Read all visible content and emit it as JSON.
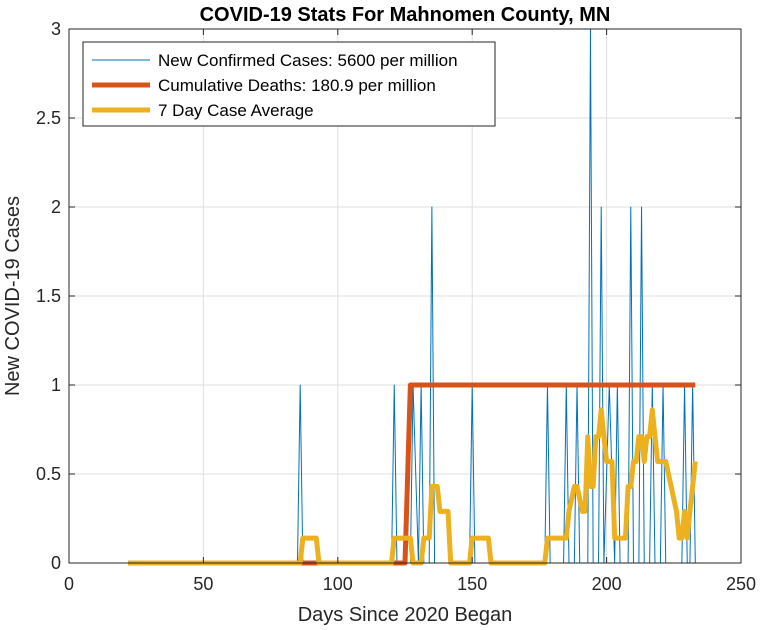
{
  "chart_data": {
    "type": "line",
    "title": "COVID-19 Stats For Mahnomen County, MN",
    "xlabel": "Days Since 2020 Began",
    "ylabel": "New COVID-19 Cases",
    "xlim": [
      0,
      250
    ],
    "ylim": [
      0,
      3
    ],
    "xticks": [
      0,
      50,
      100,
      150,
      200,
      250
    ],
    "yticks": [
      0,
      0.5,
      1,
      1.5,
      2,
      2.5,
      3
    ],
    "xtick_labels": [
      "0",
      "50",
      "100",
      "150",
      "200",
      "250"
    ],
    "ytick_labels": [
      "0",
      "0.5",
      "1",
      "1.5",
      "2",
      "2.5",
      "3"
    ],
    "grid": true,
    "legend_position": "top-left",
    "series": [
      {
        "name": "New Confirmed Cases: 5600 per million",
        "color": "#0072BD",
        "x": [
          22,
          85,
          86,
          87,
          120,
          121,
          122,
          127,
          128,
          130,
          131,
          132,
          134,
          135,
          136,
          149,
          150,
          151,
          177,
          178,
          179,
          184,
          185,
          186,
          188,
          189,
          190,
          193,
          194,
          195,
          197,
          198,
          199,
          201,
          203,
          204,
          205,
          208,
          209,
          210,
          212,
          213,
          214,
          216,
          217,
          218,
          220,
          221,
          222,
          228,
          229,
          230,
          231,
          232,
          233
        ],
        "y": [
          0,
          0,
          1,
          0,
          0,
          1,
          0,
          0,
          1,
          0,
          1,
          0,
          0,
          2,
          0,
          0,
          1,
          0,
          0,
          1,
          0,
          0,
          1,
          0,
          0,
          1,
          0,
          0,
          3,
          0,
          0,
          2,
          0,
          1,
          0,
          1,
          0,
          0,
          2,
          0,
          0,
          2,
          0,
          0,
          1,
          0,
          0,
          1,
          0,
          0,
          1,
          0,
          0,
          1,
          0
        ]
      },
      {
        "name": "Cumulative Deaths: 180.9 per million",
        "color": "#D95319",
        "x": [
          22,
          125,
          127,
          233
        ],
        "y": [
          0,
          0,
          1,
          1
        ]
      },
      {
        "name": "7 Day Case Average",
        "color": "#EDB120",
        "x": [
          22,
          86,
          87,
          92,
          93,
          120,
          121,
          127,
          128,
          131,
          132,
          134,
          135,
          137,
          138,
          141,
          142,
          149,
          150,
          156,
          157,
          177,
          178,
          185,
          186,
          188,
          189,
          191,
          192,
          193,
          194,
          195,
          196,
          197,
          198,
          199,
          200,
          202,
          203,
          207,
          208,
          209,
          210,
          211,
          212,
          213,
          214,
          215,
          216,
          217,
          218,
          219,
          220,
          221,
          222,
          226,
          227,
          228,
          229,
          230,
          231,
          233
        ],
        "y": [
          0,
          0,
          0.14,
          0.14,
          0,
          0,
          0.14,
          0.14,
          0,
          0,
          0.14,
          0.14,
          0.43,
          0.43,
          0.29,
          0.29,
          0,
          0,
          0.14,
          0.14,
          0,
          0,
          0.14,
          0.14,
          0.29,
          0.43,
          0.43,
          0.29,
          0.29,
          0.71,
          0.43,
          0.43,
          0.71,
          0.71,
          0.86,
          0.71,
          0.57,
          0.57,
          0.14,
          0.14,
          0.43,
          0.43,
          0.57,
          0.57,
          0.71,
          0.71,
          0.57,
          0.71,
          0.71,
          0.86,
          0.71,
          0.57,
          0.57,
          0.57,
          0.57,
          0.29,
          0.14,
          0.14,
          0.29,
          0.14,
          0.29,
          0.57
        ]
      }
    ]
  }
}
